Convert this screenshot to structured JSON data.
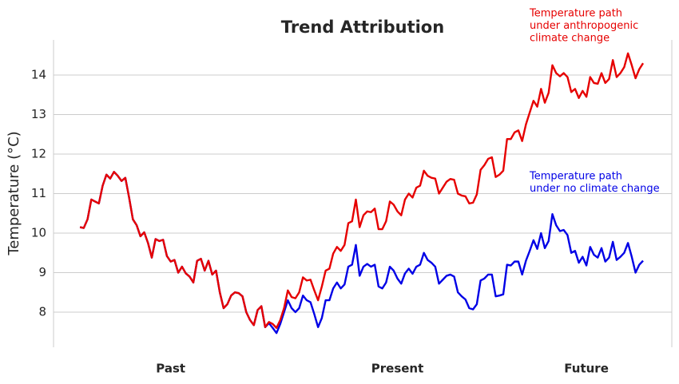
{
  "chart_data": {
    "type": "line",
    "title": "Trend Attribution",
    "y_label": "Temperature (°C)",
    "x": [
      0,
      1,
      2,
      3,
      4,
      5,
      6,
      7,
      8,
      9,
      10,
      11,
      12,
      13,
      14,
      15,
      16,
      17,
      18,
      19,
      20,
      21,
      22,
      23,
      24,
      25,
      26,
      27,
      28,
      29,
      30,
      31,
      32,
      33,
      34,
      35,
      36,
      37,
      38,
      39,
      40,
      41,
      42,
      43,
      44,
      45,
      46,
      47,
      48,
      49,
      50,
      51,
      52,
      53,
      54,
      55,
      56,
      57,
      58,
      59,
      60,
      61,
      62,
      63,
      64,
      65,
      66,
      67,
      68,
      69,
      70,
      71,
      72,
      73,
      74,
      75,
      76,
      77,
      78,
      79,
      80,
      81,
      82,
      83,
      84,
      85,
      86,
      87,
      88,
      89,
      90,
      91,
      92,
      93,
      94,
      95,
      96,
      97,
      98,
      99,
      100,
      101,
      102,
      103,
      104,
      105,
      106,
      107,
      108,
      109,
      110,
      111,
      112,
      113,
      114,
      115,
      116,
      117,
      118,
      119,
      120,
      121,
      122,
      123,
      124,
      125,
      126,
      127,
      128,
      129,
      130,
      131,
      132,
      133,
      134,
      135,
      136,
      137,
      138,
      139,
      140,
      141,
      142,
      143,
      144,
      145,
      146,
      147,
      148,
      149
    ],
    "series": [
      {
        "color": "#e60000",
        "values": [
          10.15,
          10.13,
          10.35,
          10.85,
          10.8,
          10.75,
          11.2,
          11.48,
          11.38,
          11.55,
          11.45,
          11.32,
          11.4,
          10.9,
          10.35,
          10.2,
          9.92,
          10.02,
          9.75,
          9.38,
          9.85,
          9.8,
          9.83,
          9.42,
          9.28,
          9.32,
          9.0,
          9.15,
          8.98,
          8.9,
          8.75,
          9.3,
          9.35,
          9.05,
          9.3,
          8.95,
          9.05,
          8.5,
          8.1,
          8.2,
          8.42,
          8.5,
          8.48,
          8.4,
          8.0,
          7.8,
          7.67,
          8.05,
          8.15,
          7.62,
          7.75,
          7.7,
          7.6,
          7.8,
          8.1,
          8.55,
          8.38,
          8.35,
          8.5,
          8.88,
          8.8,
          8.82,
          8.55,
          8.3,
          8.65,
          9.05,
          9.1,
          9.48,
          9.65,
          9.55,
          9.7,
          10.25,
          10.3,
          10.85,
          10.15,
          10.45,
          10.55,
          10.53,
          10.62,
          10.1,
          10.1,
          10.3,
          10.8,
          10.72,
          10.55,
          10.45,
          10.85,
          11.0,
          10.9,
          11.15,
          11.2,
          11.58,
          11.45,
          11.4,
          11.38,
          11.0,
          11.15,
          11.3,
          11.37,
          11.35,
          11.0,
          10.95,
          10.93,
          10.75,
          10.77,
          10.98,
          11.6,
          11.72,
          11.88,
          11.92,
          11.42,
          11.48,
          11.58,
          12.38,
          12.38,
          12.55,
          12.6,
          12.33,
          12.75,
          13.05,
          13.35,
          13.2,
          13.65,
          13.3,
          13.55,
          14.25,
          14.05,
          13.97,
          14.05,
          13.95,
          13.57,
          13.65,
          13.42,
          13.6,
          13.45,
          13.95,
          13.8,
          13.78,
          14.05,
          13.8,
          13.9,
          14.38,
          13.95,
          14.05,
          14.2,
          14.55,
          14.25,
          13.92,
          14.15,
          14.3
        ]
      },
      {
        "color": "#0000e6",
        "values": [
          10.15,
          10.13,
          10.35,
          10.85,
          10.8,
          10.75,
          11.2,
          11.48,
          11.38,
          11.55,
          11.45,
          11.32,
          11.4,
          10.9,
          10.35,
          10.2,
          9.92,
          10.02,
          9.75,
          9.38,
          9.85,
          9.8,
          9.83,
          9.42,
          9.28,
          9.32,
          9.0,
          9.15,
          8.98,
          8.9,
          8.75,
          9.3,
          9.35,
          9.05,
          9.3,
          8.95,
          9.05,
          8.5,
          8.1,
          8.2,
          8.42,
          8.5,
          8.48,
          8.4,
          8.0,
          7.8,
          7.67,
          8.05,
          8.15,
          7.62,
          7.72,
          7.6,
          7.47,
          7.7,
          8.0,
          8.3,
          8.1,
          8.0,
          8.1,
          8.42,
          8.3,
          8.25,
          7.95,
          7.62,
          7.85,
          8.3,
          8.3,
          8.6,
          8.75,
          8.6,
          8.7,
          9.15,
          9.2,
          9.7,
          8.92,
          9.15,
          9.22,
          9.15,
          9.2,
          8.65,
          8.6,
          8.75,
          9.15,
          9.05,
          8.85,
          8.72,
          8.98,
          9.1,
          8.97,
          9.15,
          9.2,
          9.5,
          9.32,
          9.25,
          9.15,
          8.72,
          8.82,
          8.92,
          8.95,
          8.9,
          8.5,
          8.4,
          8.32,
          8.1,
          8.07,
          8.2,
          8.8,
          8.85,
          8.95,
          8.95,
          8.4,
          8.42,
          8.45,
          9.2,
          9.18,
          9.28,
          9.28,
          8.95,
          9.3,
          9.55,
          9.82,
          9.6,
          10.0,
          9.62,
          9.8,
          10.48,
          10.2,
          10.05,
          10.08,
          9.95,
          9.5,
          9.55,
          9.25,
          9.4,
          9.18,
          9.65,
          9.45,
          9.38,
          9.62,
          9.28,
          9.38,
          9.78,
          9.32,
          9.4,
          9.5,
          9.75,
          9.4,
          9.0,
          9.2,
          9.3
        ]
      }
    ],
    "xlim": [
      -7,
      156.6
    ],
    "xticks": [
      {
        "value": 24,
        "label": "Past"
      },
      {
        "value": 84,
        "label": "Present"
      },
      {
        "value": 134,
        "label": "Future"
      }
    ],
    "ylim": [
      7.11,
      14.89
    ],
    "yticks": [
      8,
      9,
      10,
      11,
      12,
      13,
      14
    ],
    "grid": true,
    "annotations": [
      {
        "lines": [
          "Temperature path",
          "under anthropogenic",
          "climate change"
        ],
        "color": "#e60000"
      },
      {
        "lines": [
          "Temperature path",
          "under no climate change"
        ],
        "color": "#0000e6"
      }
    ]
  }
}
